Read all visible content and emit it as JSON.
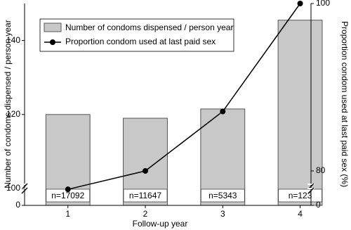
{
  "chart_data": {
    "type": "bar-line",
    "x": [
      1,
      2,
      3,
      4
    ],
    "xlim": [
      0.44,
      4.14
    ],
    "xticks": [
      1,
      2,
      3,
      4
    ],
    "xlabel": "Follow-up year",
    "series": [
      {
        "name": "Number of condoms dispensed / person year",
        "type": "bar",
        "color": "#c8c8c8",
        "values": [
          120,
          119,
          121.5,
          145.5
        ]
      },
      {
        "name": "Proportion condom used at last paid sex",
        "type": "line",
        "axis": "y2",
        "color": "#000000",
        "values": [
          77.8,
          80,
          87.1,
          100
        ]
      }
    ],
    "annotations": [
      "n=17092",
      "n=11647",
      "n=5343",
      "n=123"
    ],
    "ylim": [
      0,
      150
    ],
    "yticks": [
      0,
      100,
      120,
      140
    ],
    "ylabel": "Number of condoms dispensed / person year",
    "y2lim": [
      0,
      100
    ],
    "y2ticks": [
      0,
      80,
      100
    ],
    "y2label": "Proportion condom used at last paid sex (%)",
    "axis_break": true,
    "legend": "upper left"
  }
}
